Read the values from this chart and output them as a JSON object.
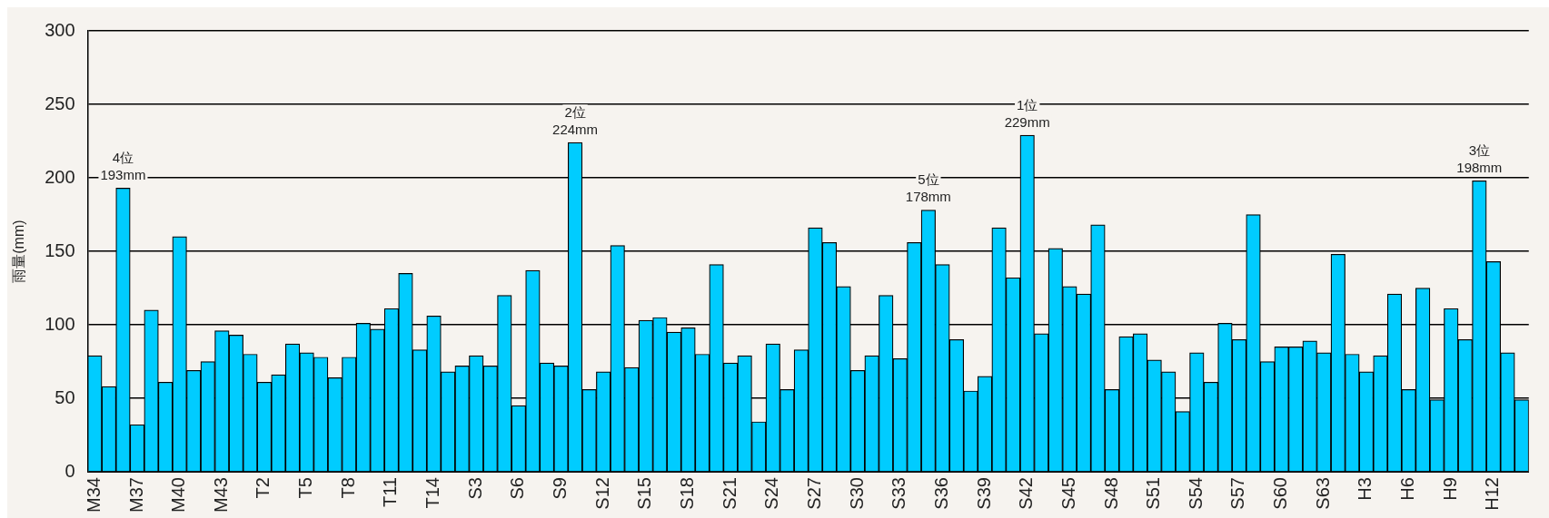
{
  "chart_data": {
    "type": "bar",
    "ylabel": "雨量(mm)",
    "categories": [
      "M34",
      null,
      null,
      "M37",
      null,
      null,
      "M40",
      null,
      null,
      "M43",
      null,
      null,
      "T2",
      null,
      null,
      "T5",
      null,
      null,
      "T8",
      null,
      null,
      "T11",
      null,
      null,
      "T14",
      null,
      null,
      "S3",
      null,
      null,
      "S6",
      null,
      null,
      "S9",
      null,
      null,
      "S12",
      null,
      null,
      "S15",
      null,
      null,
      "S18",
      null,
      null,
      "S21",
      null,
      null,
      "S24",
      null,
      null,
      "S27",
      null,
      null,
      "S30",
      null,
      null,
      "S33",
      null,
      null,
      "S36",
      null,
      null,
      "S39",
      null,
      null,
      "S42",
      null,
      null,
      "S45",
      null,
      null,
      "S48",
      null,
      null,
      "S51",
      null,
      null,
      "S54",
      null,
      null,
      "S57",
      null,
      null,
      "S60",
      null,
      null,
      "S63",
      null,
      null,
      "H3",
      null,
      null,
      "H6",
      null,
      null,
      "H9",
      null,
      null,
      "H12",
      null,
      null
    ],
    "values": [
      79,
      58,
      193,
      32,
      110,
      61,
      160,
      69,
      75,
      96,
      93,
      80,
      61,
      66,
      87,
      81,
      78,
      64,
      78,
      101,
      97,
      111,
      135,
      83,
      106,
      68,
      72,
      79,
      72,
      120,
      45,
      137,
      74,
      72,
      224,
      56,
      68,
      154,
      71,
      103,
      105,
      95,
      98,
      80,
      141,
      74,
      79,
      34,
      87,
      56,
      83,
      166,
      156,
      126,
      69,
      79,
      120,
      77,
      156,
      178,
      141,
      90,
      55,
      65,
      166,
      132,
      229,
      94,
      152,
      126,
      121,
      168,
      56,
      92,
      94,
      76,
      68,
      41,
      81,
      61,
      101,
      90,
      175,
      75,
      85,
      85,
      89,
      81,
      148,
      80,
      68,
      79,
      121,
      56,
      125,
      49,
      111,
      90,
      198,
      143,
      81,
      49
    ],
    "value_labels": [
      null,
      null,
      "4位\n193mm",
      null,
      null,
      null,
      null,
      null,
      null,
      null,
      null,
      null,
      null,
      null,
      null,
      null,
      null,
      null,
      null,
      null,
      null,
      null,
      null,
      null,
      null,
      null,
      null,
      null,
      null,
      null,
      null,
      null,
      null,
      null,
      "2位\n224mm",
      null,
      null,
      null,
      null,
      null,
      null,
      null,
      null,
      null,
      null,
      null,
      null,
      null,
      null,
      null,
      null,
      null,
      null,
      null,
      null,
      null,
      null,
      null,
      null,
      "5位\n178mm",
      null,
      null,
      null,
      null,
      null,
      null,
      "1位\n229mm",
      null,
      null,
      null,
      null,
      null,
      null,
      null,
      null,
      null,
      null,
      null,
      null,
      null,
      null,
      null,
      null,
      null,
      null,
      null,
      null,
      null,
      null,
      null,
      null,
      null,
      null,
      null,
      null,
      null,
      null,
      null,
      "3位\n198mm",
      null,
      null,
      null
    ],
    "color": "#00ccff",
    "ylim": [
      0,
      300
    ],
    "yticks": [
      0,
      50,
      100,
      150,
      200,
      250,
      300
    ],
    "grid": "y"
  }
}
